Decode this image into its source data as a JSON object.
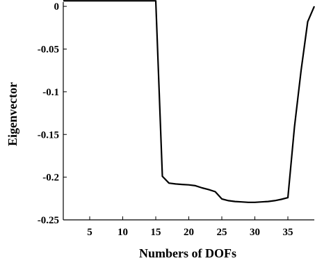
{
  "chart_data": {
    "type": "line",
    "title": "",
    "xlabel": "Numbers of DOFs",
    "ylabel": "Eigenvector",
    "xlim": [
      1,
      39
    ],
    "ylim": [
      -0.25,
      0.005
    ],
    "x_ticks": [
      5,
      10,
      15,
      20,
      25,
      30,
      35
    ],
    "y_ticks": [
      0,
      -0.05,
      -0.1,
      -0.15,
      -0.2,
      -0.25
    ],
    "y_tick_labels": [
      "0",
      "-0.05",
      "-0.1",
      "-0.15",
      "-0.2",
      "-0.25"
    ],
    "grid": false,
    "line_color": "#000000",
    "series": [
      {
        "x": [
          1,
          15,
          16,
          17,
          18,
          19,
          20,
          21,
          22,
          23,
          24,
          25,
          26,
          27,
          28,
          29,
          30,
          31,
          32,
          33,
          34,
          35,
          36,
          37,
          38,
          39
        ],
        "y": [
          0.0065,
          0.0065,
          -0.199,
          -0.207,
          -0.208,
          -0.2085,
          -0.209,
          -0.21,
          -0.2125,
          -0.2145,
          -0.217,
          -0.2255,
          -0.2275,
          -0.2285,
          -0.229,
          -0.2295,
          -0.2295,
          -0.229,
          -0.2285,
          -0.2275,
          -0.226,
          -0.224,
          -0.141,
          -0.075,
          -0.018,
          0.0
        ]
      }
    ]
  }
}
